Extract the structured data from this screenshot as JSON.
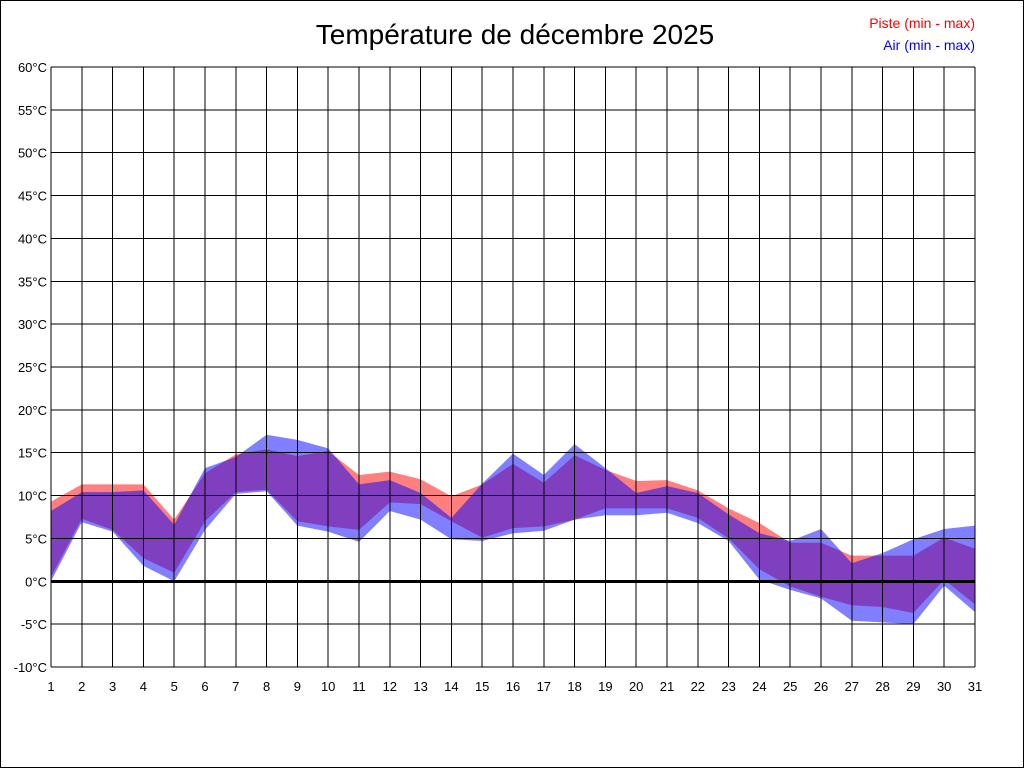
{
  "chart_data": {
    "type": "area",
    "title": "Température de décembre 2025",
    "xlabel": "",
    "ylabel": "",
    "x": [
      1,
      2,
      3,
      4,
      5,
      6,
      7,
      8,
      9,
      10,
      11,
      12,
      13,
      14,
      15,
      16,
      17,
      18,
      19,
      20,
      21,
      22,
      23,
      24,
      25,
      26,
      27,
      28,
      29,
      30,
      31
    ],
    "xlim": [
      1,
      31
    ],
    "ylim": [
      -10,
      60
    ],
    "y_ticks": [
      -10,
      -5,
      0,
      5,
      10,
      15,
      20,
      25,
      30,
      35,
      40,
      45,
      50,
      55,
      60
    ],
    "y_tick_unit": "°C",
    "grid": true,
    "legend_position": "top-right",
    "series": [
      {
        "name": "Piste (min - max)",
        "color": "#ff0000",
        "min": [
          0.5,
          7.3,
          6.0,
          2.7,
          1.0,
          7.0,
          10.4,
          10.7,
          7.0,
          6.4,
          6.0,
          9.2,
          9.0,
          7.0,
          5.1,
          6.2,
          6.4,
          7.2,
          8.5,
          8.5,
          8.5,
          7.4,
          5.0,
          1.4,
          -0.6,
          -1.8,
          -2.8,
          -3.0,
          -3.7,
          0.2,
          -2.7
        ],
        "max": [
          9.3,
          11.3,
          11.3,
          11.3,
          7.2,
          12.6,
          14.8,
          15.4,
          14.6,
          15.2,
          12.4,
          12.8,
          11.9,
          9.9,
          11.3,
          13.7,
          11.5,
          14.7,
          13.0,
          11.7,
          11.8,
          10.6,
          8.5,
          6.8,
          4.5,
          4.5,
          3.0,
          3.0,
          3.0,
          5.1,
          3.8
        ]
      },
      {
        "name": "Air (min - max)",
        "color": "#0000ff",
        "min": [
          0.0,
          6.9,
          5.8,
          1.8,
          0.0,
          6.0,
          10.2,
          10.5,
          6.5,
          5.8,
          4.6,
          8.2,
          7.2,
          4.9,
          4.7,
          5.6,
          5.9,
          7.2,
          7.7,
          7.7,
          8.0,
          6.8,
          4.7,
          0.2,
          -1.0,
          -2.0,
          -4.6,
          -4.8,
          -5.0,
          -0.5,
          -3.6
        ],
        "max": [
          8.2,
          10.4,
          10.4,
          10.6,
          6.6,
          13.2,
          14.5,
          17.1,
          16.5,
          15.5,
          11.3,
          11.8,
          10.3,
          7.4,
          11.4,
          14.9,
          12.4,
          16.0,
          13.2,
          10.3,
          11.1,
          10.3,
          7.8,
          5.6,
          4.7,
          6.1,
          2.1,
          3.3,
          4.9,
          6.1,
          6.5
        ]
      }
    ]
  }
}
